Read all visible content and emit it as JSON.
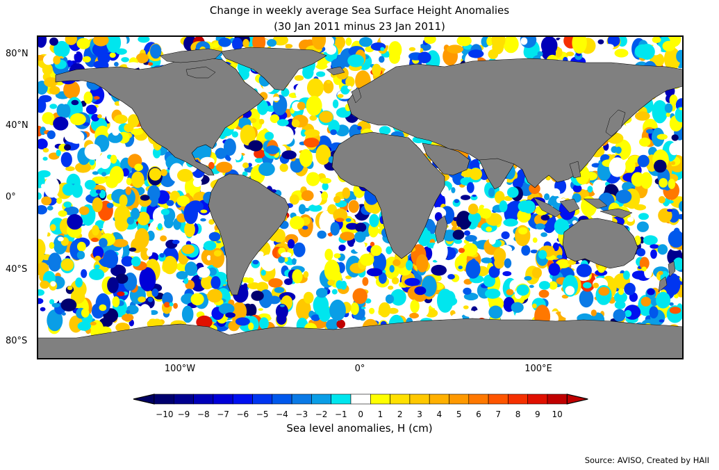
{
  "title_line1": "Change in weekly average Sea Surface Height Anomalies",
  "title_line2": "(30 Jan 2011 minus 23 Jan 2011)",
  "lat_labels": [
    "80°N",
    "40°N",
    "0°",
    "40°S",
    "80°S"
  ],
  "lon_labels": [
    "100°W",
    "0°",
    "100°E"
  ],
  "colorbar": {
    "label": "Sea level anomalies, H (cm)",
    "ticks": [
      "−10",
      "−9",
      "−8",
      "−7",
      "−6",
      "−5",
      "−4",
      "−3",
      "−2",
      "−1",
      "0",
      "1",
      "2",
      "3",
      "4",
      "5",
      "6",
      "7",
      "8",
      "9",
      "10"
    ],
    "colors": [
      "#00006e",
      "#00008f",
      "#0000b8",
      "#0000d8",
      "#0010f0",
      "#0035f0",
      "#0058ec",
      "#0a7ae6",
      "#0a9ee6",
      "#00e6ee",
      "#ffffff",
      "#ffff00",
      "#ffe000",
      "#ffc800",
      "#ffb000",
      "#ff9900",
      "#ff7800",
      "#ff5500",
      "#f53000",
      "#e01000",
      "#c00000"
    ],
    "under_color": "#000064",
    "over_color": "#c00000"
  },
  "source": "Source: AVISO, Created by HAII",
  "colors": {
    "land": "#808080",
    "ice": "#ffffff",
    "frame": "#000000"
  }
}
